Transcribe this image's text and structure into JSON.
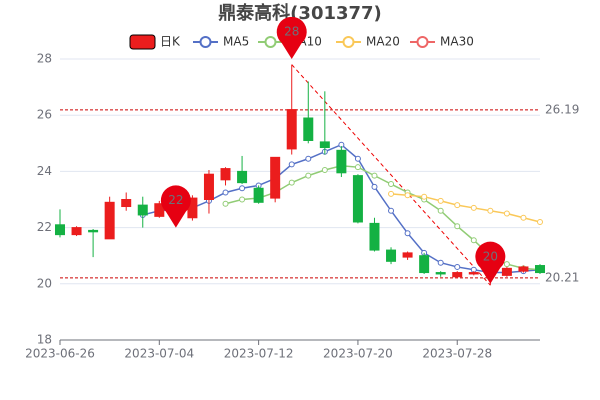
{
  "chart_data": {
    "type": "candlestick",
    "title": "鼎泰高科(301377)",
    "categories": [
      "2023-06-26",
      null,
      null,
      null,
      null,
      null,
      "2023-07-04",
      null,
      null,
      null,
      null,
      null,
      "2023-07-12",
      null,
      null,
      null,
      null,
      null,
      "2023-07-20",
      null,
      null,
      null,
      null,
      null,
      "2023-07-28",
      null,
      null,
      null,
      null,
      null
    ],
    "ylim": [
      18,
      28
    ],
    "yticks": [
      18,
      20,
      22,
      24,
      26,
      28
    ],
    "grid": true,
    "up_color": "#eb1d1d",
    "down_color": "#14b143",
    "series": [
      {
        "name": "日K",
        "type": "candlestick",
        "color": "#eb1d1d",
        "values": [
          [
            22.1,
            21.75,
            21.65,
            22.65
          ],
          [
            21.75,
            22.0,
            21.7,
            22.05
          ],
          [
            21.9,
            21.85,
            20.95,
            21.95
          ],
          [
            21.6,
            22.9,
            21.6,
            23.1
          ],
          [
            22.75,
            23.0,
            22.6,
            23.25
          ],
          [
            22.8,
            22.45,
            22.0,
            23.1
          ],
          [
            22.4,
            22.85,
            22.35,
            22.95
          ],
          [
            22.7,
            22.4,
            22.35,
            22.9
          ],
          [
            22.35,
            23.05,
            22.25,
            23.15
          ],
          [
            23.0,
            23.9,
            22.5,
            24.05
          ],
          [
            23.7,
            24.1,
            23.5,
            24.15
          ],
          [
            24.0,
            23.6,
            23.55,
            24.55
          ],
          [
            23.4,
            22.9,
            22.85,
            23.5
          ],
          [
            23.05,
            24.5,
            22.9,
            24.5
          ],
          [
            24.8,
            26.2,
            24.6,
            27.8
          ],
          [
            25.9,
            25.1,
            25.0,
            27.2
          ],
          [
            25.05,
            24.85,
            24.6,
            26.85
          ],
          [
            24.75,
            23.95,
            23.8,
            24.9
          ],
          [
            23.85,
            22.2,
            22.15,
            23.9
          ],
          [
            22.15,
            21.2,
            21.15,
            22.35
          ],
          [
            21.2,
            20.8,
            20.7,
            21.3
          ],
          [
            20.95,
            21.1,
            20.85,
            21.15
          ],
          [
            21.0,
            20.4,
            20.35,
            21.1
          ],
          [
            20.4,
            20.35,
            20.25,
            20.45
          ],
          [
            20.25,
            20.4,
            20.2,
            20.45
          ],
          [
            20.35,
            20.4,
            20.3,
            20.45
          ],
          [
            20.3,
            20.4,
            19.95,
            20.45
          ],
          [
            20.3,
            20.55,
            20.25,
            20.6
          ],
          [
            20.45,
            20.6,
            20.4,
            20.65
          ],
          [
            20.65,
            20.4,
            20.35,
            20.7
          ]
        ]
      },
      {
        "name": "MA5",
        "type": "line",
        "color": "#5470c6",
        "values": [
          null,
          null,
          null,
          null,
          null,
          22.45,
          22.6,
          22.65,
          22.7,
          22.95,
          23.25,
          23.4,
          23.5,
          23.75,
          24.25,
          24.45,
          24.7,
          24.95,
          24.45,
          23.45,
          22.6,
          21.8,
          21.1,
          20.75,
          20.6,
          20.5,
          20.4,
          20.4,
          20.45,
          20.5
        ]
      },
      {
        "name": "MA10",
        "type": "line",
        "color": "#91cc75",
        "values": [
          null,
          null,
          null,
          null,
          null,
          null,
          null,
          null,
          null,
          null,
          22.85,
          23.0,
          23.05,
          23.25,
          23.6,
          23.85,
          24.05,
          24.2,
          24.15,
          23.85,
          23.55,
          23.25,
          23.0,
          22.6,
          22.05,
          21.55,
          21.0,
          20.7,
          20.55,
          20.5
        ]
      },
      {
        "name": "MA20",
        "type": "line",
        "color": "#fac858",
        "values": [
          null,
          null,
          null,
          null,
          null,
          null,
          null,
          null,
          null,
          null,
          null,
          null,
          null,
          null,
          null,
          null,
          null,
          null,
          null,
          null,
          23.2,
          23.15,
          23.1,
          22.95,
          22.8,
          22.7,
          22.6,
          22.5,
          22.35,
          22.2
        ]
      },
      {
        "name": "MA30",
        "type": "line",
        "color": "#ee6666",
        "values": [
          null,
          null,
          null,
          null,
          null,
          null,
          null,
          null,
          null,
          null,
          null,
          null,
          null,
          null,
          null,
          null,
          null,
          null,
          null,
          null,
          null,
          null,
          null,
          null,
          null,
          null,
          null,
          null,
          null,
          null
        ]
      }
    ],
    "pin_values": [
      null,
      null,
      null,
      null,
      null,
      null,
      null,
      22,
      null,
      null,
      null,
      null,
      null,
      null,
      28,
      null,
      null,
      null,
      null,
      null,
      null,
      null,
      null,
      null,
      null,
      null,
      20,
      null,
      null,
      null
    ],
    "pin_color": "#e60012",
    "mark_lines": [
      26.19,
      20.21
    ],
    "trend_line": true
  }
}
